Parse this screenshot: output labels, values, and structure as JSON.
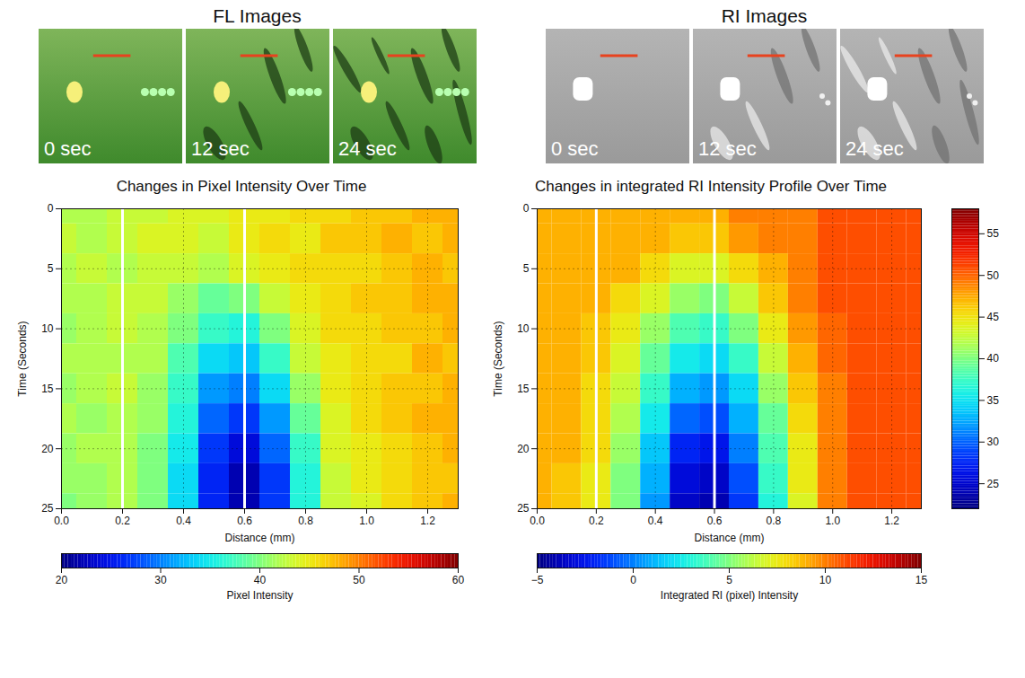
{
  "image_panels": [
    {
      "title": "FL Images",
      "kind": "fluorescence",
      "frames": [
        "0 sec",
        "12 sec",
        "24 sec"
      ]
    },
    {
      "title": "RI Images",
      "kind": "reflectance",
      "frames": [
        "0 sec",
        "12 sec",
        "24 sec"
      ]
    }
  ],
  "chart_data": [
    {
      "type": "heatmap",
      "title": "Changes in Pixel Intensity Over Time",
      "xlabel": "Distance (mm)",
      "ylabel": "Time (Seconds)",
      "zlabel": "Pixel Intensity",
      "x": [
        0,
        0.1,
        0.2,
        0.3,
        0.4,
        0.5,
        0.6,
        0.7,
        0.8,
        0.9,
        1.0,
        1.1,
        1.2,
        1.3
      ],
      "y": [
        0,
        2.5,
        5,
        7.5,
        10,
        12.5,
        15,
        17.5,
        20,
        22.5,
        25
      ],
      "cells": [
        [
          42,
          42,
          43,
          43,
          44,
          44,
          45,
          45,
          46,
          46,
          47,
          47,
          48,
          48
        ],
        [
          43,
          42,
          43,
          44,
          44,
          43,
          45,
          46,
          45,
          47,
          47,
          48,
          47,
          48
        ],
        [
          42,
          43,
          42,
          43,
          43,
          42,
          44,
          45,
          46,
          46,
          46,
          47,
          48,
          47
        ],
        [
          42,
          42,
          43,
          43,
          41,
          39,
          40,
          43,
          45,
          46,
          47,
          47,
          48,
          48
        ],
        [
          41,
          42,
          43,
          42,
          40,
          37,
          36,
          40,
          44,
          46,
          46,
          47,
          47,
          48
        ],
        [
          42,
          42,
          42,
          42,
          38,
          34,
          33,
          37,
          43,
          45,
          46,
          46,
          48,
          47
        ],
        [
          41,
          42,
          43,
          41,
          37,
          31,
          30,
          34,
          41,
          45,
          46,
          47,
          47,
          48
        ],
        [
          42,
          41,
          42,
          41,
          36,
          29,
          27,
          31,
          39,
          44,
          46,
          47,
          48,
          48
        ],
        [
          41,
          42,
          42,
          40,
          35,
          27,
          24,
          29,
          37,
          44,
          45,
          46,
          47,
          48
        ],
        [
          41,
          41,
          42,
          40,
          34,
          26,
          22,
          27,
          36,
          43,
          45,
          46,
          47,
          47
        ],
        [
          40,
          41,
          42,
          40,
          34,
          26,
          22,
          27,
          36,
          43,
          44,
          46,
          47,
          48
        ]
      ],
      "xlim": [
        0,
        1.3
      ],
      "xticks": [
        0,
        0.2,
        0.4,
        0.6,
        0.8,
        1,
        1.2
      ],
      "ylim": [
        0,
        25
      ],
      "yticks": [
        0,
        5,
        10,
        15,
        20,
        25
      ],
      "zlim": [
        20,
        60
      ],
      "zticks": [
        20,
        30,
        40,
        50,
        60
      ],
      "reference_lines": [
        0.2,
        0.6
      ],
      "grid": true
    },
    {
      "type": "heatmap",
      "title": "Changes in integrated RI Intensity Profile Over Time",
      "xlabel": "Distance (mm)",
      "ylabel": "Time (Seconds)",
      "zlabel": "Integrated RI (pixel) Intensity",
      "x": [
        0,
        0.1,
        0.2,
        0.3,
        0.4,
        0.5,
        0.6,
        0.7,
        0.8,
        0.9,
        1.0,
        1.1,
        1.2,
        1.3
      ],
      "y": [
        0,
        2.5,
        5,
        7.5,
        10,
        12.5,
        15,
        17.5,
        20,
        22.5,
        25
      ],
      "cells": [
        [
          9,
          9,
          9,
          9,
          9,
          9,
          9,
          10,
          10,
          10,
          11,
          11,
          11,
          11
        ],
        [
          9,
          9,
          9,
          9,
          9,
          8.5,
          8.5,
          9.5,
          10,
          10,
          11,
          11,
          11,
          11
        ],
        [
          9,
          9,
          9,
          9,
          8,
          7,
          7,
          8,
          9,
          10,
          11,
          11,
          11,
          11
        ],
        [
          9,
          9,
          9,
          8,
          7,
          5.5,
          5,
          6.5,
          8.5,
          10,
          11,
          11,
          11,
          11
        ],
        [
          9,
          9,
          8.5,
          7.5,
          5.5,
          4,
          3.5,
          5,
          7.5,
          9.5,
          10.5,
          11,
          11,
          11
        ],
        [
          9,
          9,
          8.5,
          7,
          4.5,
          2.5,
          2,
          3.5,
          6.5,
          9,
          10.5,
          11,
          11,
          11
        ],
        [
          9,
          9,
          8,
          6.5,
          3.5,
          1,
          0.5,
          2,
          5.5,
          8.5,
          10,
          11,
          11,
          11
        ],
        [
          9,
          9,
          8,
          6,
          2.5,
          -0.5,
          -1,
          1,
          4.5,
          8,
          10,
          11,
          11,
          11
        ],
        [
          9,
          9,
          8,
          5.5,
          1.5,
          -2,
          -2.5,
          0,
          4,
          7.5,
          10,
          11,
          11,
          11
        ],
        [
          9,
          8.5,
          7.5,
          5,
          1,
          -3,
          -3.5,
          -1,
          3.5,
          7.5,
          10,
          11,
          11,
          11
        ],
        [
          9,
          8.5,
          7.5,
          5,
          0.5,
          -3.5,
          -4,
          -1.5,
          3,
          7,
          10,
          11,
          11,
          11
        ]
      ],
      "xlim": [
        0,
        1.3
      ],
      "xticks": [
        0,
        0.2,
        0.4,
        0.6,
        0.8,
        1,
        1.2
      ],
      "ylim": [
        0,
        25
      ],
      "yticks": [
        0,
        5,
        10,
        15,
        20,
        25
      ],
      "zlim": [
        -5,
        15
      ],
      "zticks": [
        -5,
        0,
        5,
        10,
        15
      ],
      "reference_lines": [
        0.2,
        0.6
      ],
      "grid": true
    }
  ],
  "colorbar": {
    "range": [
      22,
      58
    ],
    "ticks": [
      25,
      30,
      35,
      40,
      45,
      50,
      55
    ]
  }
}
